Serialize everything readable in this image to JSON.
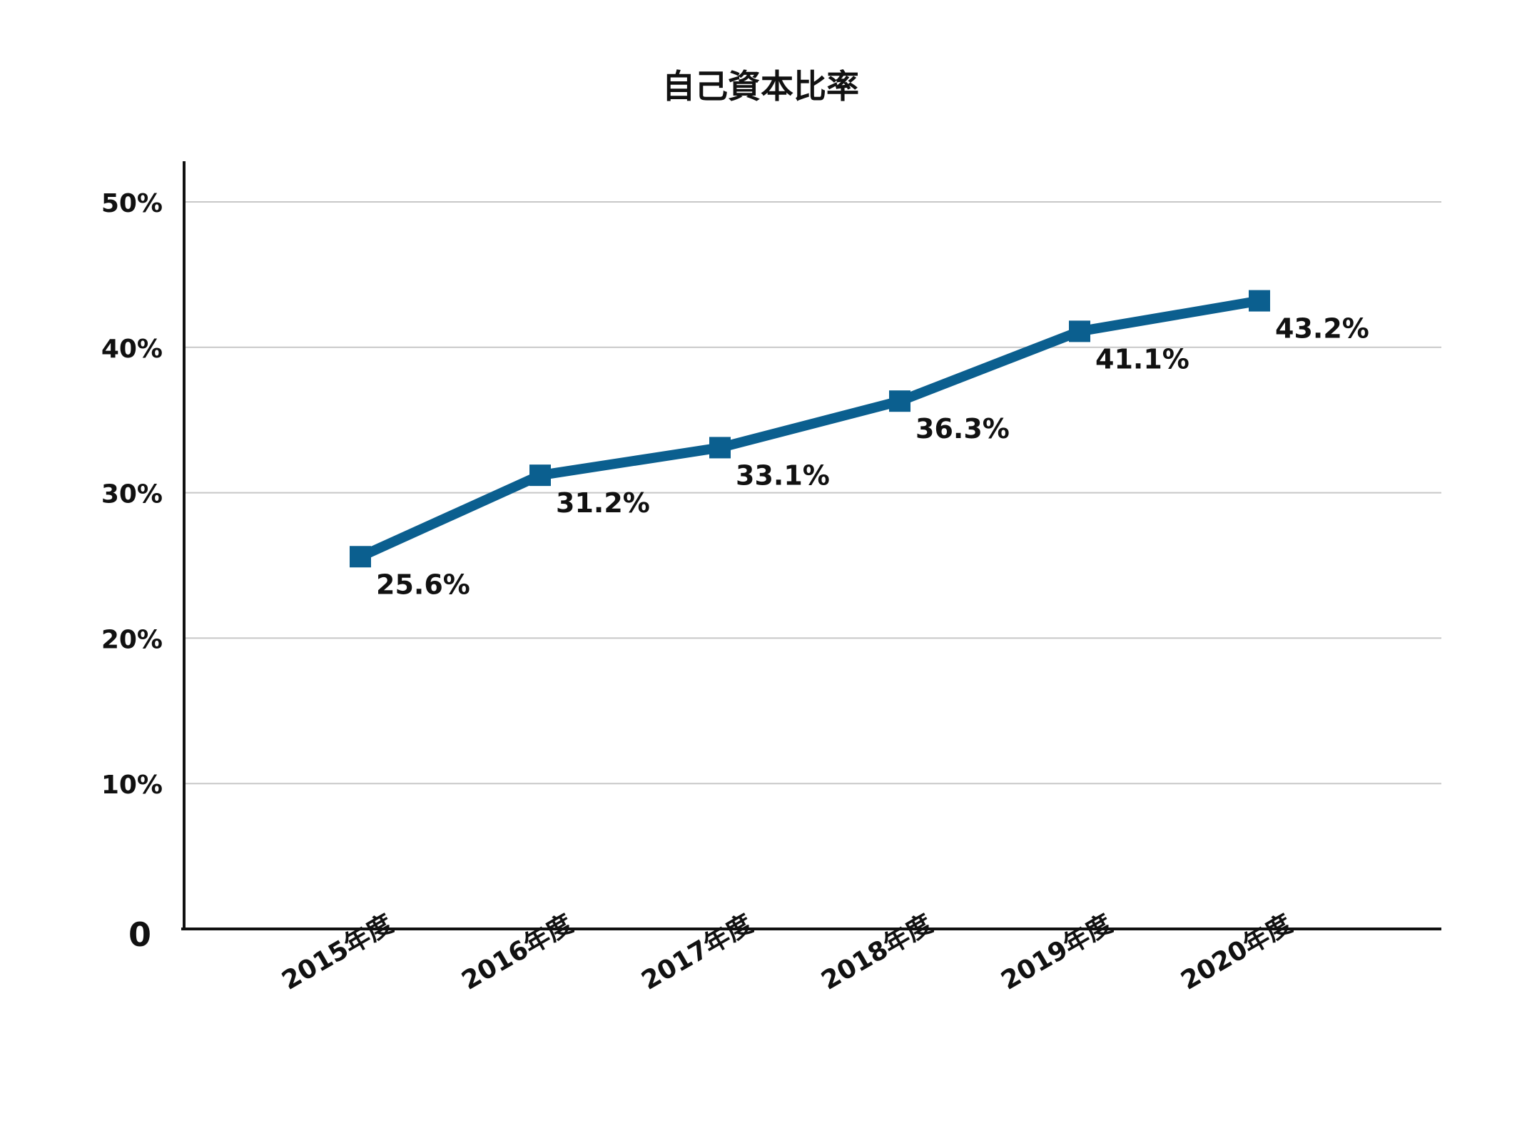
{
  "chart_data": {
    "type": "line",
    "title": "自己資本比率",
    "xlabel": "",
    "ylabel": "",
    "categories": [
      "2015年度",
      "2016年度",
      "2017年度",
      "2018年度",
      "2019年度",
      "2020年度"
    ],
    "series": [
      {
        "values": [
          25.6,
          31.2,
          33.1,
          36.3,
          41.1,
          43.2
        ]
      }
    ],
    "data_labels": [
      "25.6%",
      "31.2%",
      "33.1%",
      "36.3%",
      "41.1%",
      "43.2%"
    ],
    "ylim": [
      0,
      50
    ],
    "yticks": [
      {
        "value": 0,
        "label": "0"
      },
      {
        "value": 10,
        "label": "10%"
      },
      {
        "value": 20,
        "label": "20%"
      },
      {
        "value": 30,
        "label": "30%"
      },
      {
        "value": 40,
        "label": "40%"
      },
      {
        "value": 50,
        "label": "50%"
      }
    ],
    "grid": true,
    "legend": "none",
    "colors": {
      "line": "#0b5f8f",
      "grid": "#c8c8c8",
      "axis": "#111111"
    }
  }
}
